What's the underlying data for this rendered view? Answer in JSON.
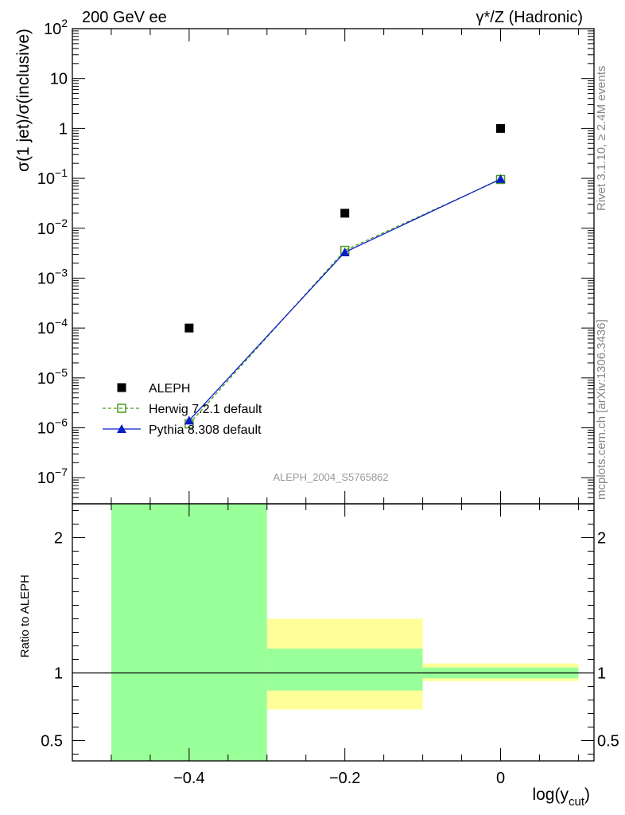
{
  "header": {
    "left": "200 GeV ee",
    "right_prefix": "γ*/Z (Hadronic)"
  },
  "side": {
    "rivet": "Rivet 3.1.10, ≥ 2.4M events",
    "mcplots": "mcplots.cern.ch [arXiv:1306.3436]"
  },
  "watermark": "ALEPH_2004_S5765862",
  "chart_data": [
    {
      "type": "scatter",
      "ylabel": "σ(1 jet)/σ(inclusive)",
      "yscale": "log",
      "ylim": [
        3e-08,
        100
      ],
      "xlim": [
        -0.55,
        0.12
      ],
      "yticks": [
        {
          "v": 100,
          "base": "10",
          "exp": "2"
        },
        {
          "v": 10,
          "base": "10",
          "exp": ""
        },
        {
          "v": 1,
          "base": "1",
          "exp": ""
        },
        {
          "v": 0.1,
          "base": "10",
          "exp": "−1"
        },
        {
          "v": 0.01,
          "base": "10",
          "exp": "−2"
        },
        {
          "v": 0.001,
          "base": "10",
          "exp": "−3"
        },
        {
          "v": 0.0001,
          "base": "10",
          "exp": "−4"
        },
        {
          "v": 1e-05,
          "base": "10",
          "exp": "−5"
        },
        {
          "v": 1e-06,
          "base": "10",
          "exp": "−6"
        },
        {
          "v": 1e-07,
          "base": "10",
          "exp": "−7"
        }
      ],
      "series": [
        {
          "name": "ALEPH",
          "marker": "square-filled",
          "color": "#000000",
          "x": [
            -0.4,
            -0.2,
            0.0
          ],
          "y": [
            0.0001,
            0.02,
            1.0
          ]
        },
        {
          "name": "Herwig 7.2.1 default",
          "marker": "square-open",
          "color": "#4a9a1e",
          "dash": "dashed",
          "x": [
            -0.4,
            -0.2,
            0.0
          ],
          "y": [
            1.2e-06,
            0.0036,
            0.095
          ]
        },
        {
          "name": "Pythia 8.308 default",
          "marker": "triangle",
          "color": "#0a1ec8",
          "x": [
            -0.4,
            -0.2,
            0.0
          ],
          "y": [
            1.4e-06,
            0.0033,
            0.097
          ]
        }
      ]
    },
    {
      "type": "area",
      "ylabel": "Ratio to ALEPH",
      "xlabel_main": "log(y",
      "xlabel_sub": "cut",
      "xlabel_end": ")",
      "ylim": [
        0.35,
        2.25
      ],
      "xlim": [
        -0.55,
        0.12
      ],
      "xticks": [
        {
          "v": -0.4,
          "label": "−0.4"
        },
        {
          "v": -0.2,
          "label": "−0.2"
        },
        {
          "v": 0.0,
          "label": "0"
        }
      ],
      "yticks": [
        {
          "v": 0.5,
          "label": "0.5"
        },
        {
          "v": 1,
          "label": "1"
        },
        {
          "v": 2,
          "label": "2"
        }
      ],
      "bands": [
        {
          "x0": -0.5,
          "x1": -0.3,
          "yellow": [
            0.35,
            2.25
          ],
          "green": [
            0.35,
            2.25
          ]
        },
        {
          "x0": -0.3,
          "x1": -0.1,
          "yellow": [
            0.73,
            1.4
          ],
          "green": [
            0.87,
            1.18
          ]
        },
        {
          "x0": -0.1,
          "x1": 0.1,
          "yellow": [
            0.94,
            1.07
          ],
          "green": [
            0.96,
            1.04
          ]
        }
      ],
      "colors": {
        "yellow": "#ffff99",
        "green": "#99ff99"
      }
    }
  ]
}
